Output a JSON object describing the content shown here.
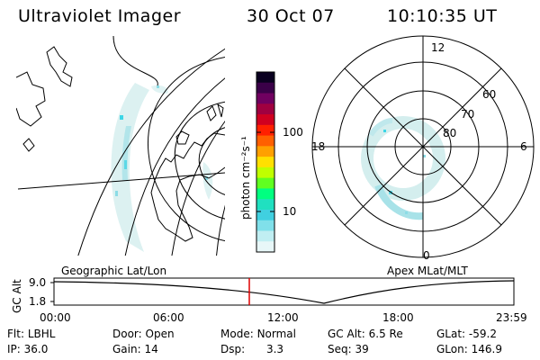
{
  "header": {
    "instrument": "Ultraviolet Imager",
    "date": "30 Oct 07",
    "time": "10:10:35 UT"
  },
  "colors": {
    "aurora_faint": "#d6efef",
    "aurora_mid": "#9fe0e6",
    "aurora_bright": "#3cd6e6",
    "marker": "#dd0000"
  },
  "geo_panel": {
    "label": "Geographic Lat/Lon"
  },
  "polar_panel": {
    "label": "Apex MLat/MLT",
    "mlt_labels": {
      "top": "12",
      "left": "18",
      "right": "6",
      "bottom": "0"
    },
    "lat_labels": [
      "60",
      "70",
      "80"
    ]
  },
  "colorbar": {
    "unit_label": "photon cm⁻²s⁻¹",
    "ticks": [
      "100",
      "10"
    ],
    "colors": [
      "#0a0020",
      "#3a0048",
      "#700060",
      "#a00040",
      "#d00020",
      "#ff2000",
      "#ff6000",
      "#ffa000",
      "#ffe000",
      "#c0ff00",
      "#60ff20",
      "#00ff80",
      "#20e0c0",
      "#40d0e0",
      "#80e0ea",
      "#c0eef2",
      "#e8f7f8"
    ]
  },
  "altitude_plot": {
    "y_axis_label": "GC Alt",
    "y_ticks": [
      "9.0",
      "1.8"
    ],
    "x_ticks": [
      "00:00",
      "06:00",
      "12:00",
      "18:00",
      "23:59"
    ],
    "marker_time": "10:10"
  },
  "info": {
    "row1": [
      {
        "key": "Flt:",
        "val": "LBHL"
      },
      {
        "key": "Door:",
        "val": "Open"
      },
      {
        "key": "Mode:",
        "val": "Normal"
      },
      {
        "key": "GC Alt:",
        "val": "6.5 Re"
      },
      {
        "key": "GLat:",
        "val": "-59.2"
      }
    ],
    "row2": [
      {
        "key": "IP:",
        "val": "36.0"
      },
      {
        "key": "Gain:",
        "val": "14"
      },
      {
        "key": "Dsp:",
        "val": "3.3"
      },
      {
        "key": "Seq:",
        "val": "39"
      },
      {
        "key": "GLon:",
        "val": "146.9"
      }
    ]
  }
}
